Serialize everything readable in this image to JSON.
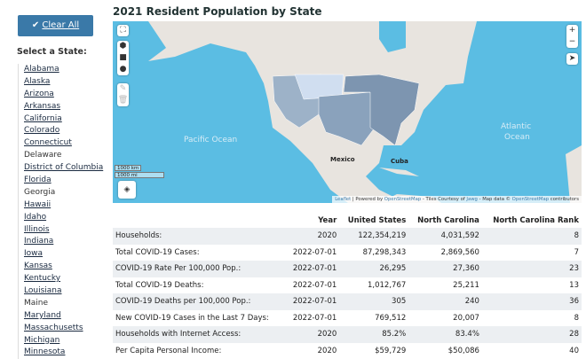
{
  "sidebar": {
    "clear_all": "Clear All",
    "select_label": "Select a State:",
    "states": [
      {
        "name": "Alabama",
        "link": true
      },
      {
        "name": "Alaska",
        "link": true
      },
      {
        "name": "Arizona",
        "link": true
      },
      {
        "name": "Arkansas",
        "link": true
      },
      {
        "name": "California",
        "link": true
      },
      {
        "name": "Colorado",
        "link": true
      },
      {
        "name": "Connecticut",
        "link": true
      },
      {
        "name": "Delaware",
        "link": false
      },
      {
        "name": "District of Columbia",
        "link": true
      },
      {
        "name": "Florida",
        "link": true
      },
      {
        "name": "Georgia",
        "link": false
      },
      {
        "name": "Hawaii",
        "link": true
      },
      {
        "name": "Idaho",
        "link": true
      },
      {
        "name": "Illinois",
        "link": true
      },
      {
        "name": "Indiana",
        "link": true
      },
      {
        "name": "Iowa",
        "link": true
      },
      {
        "name": "Kansas",
        "link": true
      },
      {
        "name": "Kentucky",
        "link": true
      },
      {
        "name": "Louisiana",
        "link": true
      },
      {
        "name": "Maine",
        "link": false
      },
      {
        "name": "Maryland",
        "link": true
      },
      {
        "name": "Massachusetts",
        "link": true
      },
      {
        "name": "Michigan",
        "link": true
      },
      {
        "name": "Minnesota",
        "link": true
      }
    ]
  },
  "title": "2021 Resident Population by State",
  "map": {
    "pacific": "Pacific Ocean",
    "atlantic_1": "Atlantic",
    "atlantic_2": "Ocean",
    "mexico": "Mexico",
    "cuba": "Cuba",
    "scale_km": "1000 km",
    "scale_mi": "1000 mi",
    "zoom_in": "+",
    "zoom_out": "−",
    "attr": {
      "leaflet": "Leaflet",
      "powered": " | Powered by ",
      "osm1": "OpenStreetMap",
      "tiles": " - Tiles Courtesy of ",
      "jawg": "Jawg",
      "mapdata": " - Map data © ",
      "osm2": "OpenStreetMap",
      "contrib": " contributors"
    },
    "colors": {
      "water": "#5bbde3",
      "land": "#e8e4df",
      "choropleth_dark": "#7d95b0",
      "choropleth_light": "#dce8f4"
    }
  },
  "table": {
    "headers": [
      "",
      "Year",
      "United States",
      "North Carolina",
      "North Carolina Rank"
    ],
    "rows": [
      [
        "Households:",
        "2020",
        "122,354,219",
        "4,031,592",
        "8"
      ],
      [
        "Total COVID-19 Cases:",
        "2022-07-01",
        "87,298,343",
        "2,869,560",
        "7"
      ],
      [
        "COVID-19 Rate Per 100,000 Pop.:",
        "2022-07-01",
        "26,295",
        "27,360",
        "23"
      ],
      [
        "Total COVID-19 Deaths:",
        "2022-07-01",
        "1,012,767",
        "25,211",
        "13"
      ],
      [
        "COVID-19 Deaths per 100,000 Pop.:",
        "2022-07-01",
        "305",
        "240",
        "36"
      ],
      [
        "New COVID-19 Cases in the Last 7 Days:",
        "2022-07-01",
        "769,512",
        "20,007",
        "8"
      ],
      [
        "Households with Internet Access:",
        "2020",
        "85.2%",
        "83.4%",
        "28"
      ],
      [
        "Per Capita Personal Income:",
        "2020",
        "$59,729",
        "$50,086",
        "40"
      ]
    ]
  }
}
